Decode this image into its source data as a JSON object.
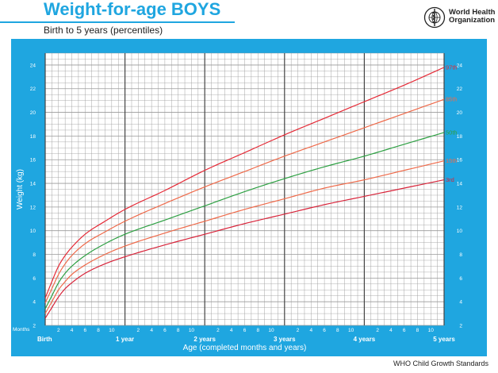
{
  "header": {
    "title": "Weight-for-age BOYS",
    "subtitle": "Birth to 5 years (percentiles)"
  },
  "logo": {
    "name": "World Health Organization",
    "line1": "World Health",
    "line2": "Organization",
    "icon": "who-emblem-icon"
  },
  "footer": {
    "source": "WHO Child Growth Standards"
  },
  "colors": {
    "panel": "#1fa6e0",
    "plot_bg": "#ffffff",
    "grid": "#9a9a9a",
    "year_line": "#444444",
    "p97": "#e52a36",
    "p85": "#ef6a4a",
    "p50": "#2ea043",
    "p15": "#ef6a4a",
    "p3": "#d8243a"
  },
  "chart_data": {
    "type": "line",
    "xlabel": "Age (completed months and years)",
    "ylabel": "Weight (kg)",
    "x_unit_label": "Months",
    "xlim": [
      0,
      60
    ],
    "ylim": [
      2,
      25
    ],
    "grid": true,
    "x_major_ticks": [
      {
        "month": 0,
        "label": "Birth"
      },
      {
        "month": 12,
        "label": "1 year"
      },
      {
        "month": 24,
        "label": "2 years"
      },
      {
        "month": 36,
        "label": "3 years"
      },
      {
        "month": 48,
        "label": "4 years"
      },
      {
        "month": 60,
        "label": "5 years"
      }
    ],
    "x_minor_ticks": [
      {
        "month": 2,
        "label": "2"
      },
      {
        "month": 4,
        "label": "4"
      },
      {
        "month": 6,
        "label": "6"
      },
      {
        "month": 8,
        "label": "8"
      },
      {
        "month": 10,
        "label": "10"
      },
      {
        "month": 14,
        "label": "2"
      },
      {
        "month": 16,
        "label": "4"
      },
      {
        "month": 18,
        "label": "6"
      },
      {
        "month": 20,
        "label": "8"
      },
      {
        "month": 22,
        "label": "10"
      },
      {
        "month": 26,
        "label": "2"
      },
      {
        "month": 28,
        "label": "4"
      },
      {
        "month": 30,
        "label": "6"
      },
      {
        "month": 32,
        "label": "8"
      },
      {
        "month": 34,
        "label": "10"
      },
      {
        "month": 38,
        "label": "2"
      },
      {
        "month": 40,
        "label": "4"
      },
      {
        "month": 42,
        "label": "6"
      },
      {
        "month": 44,
        "label": "8"
      },
      {
        "month": 46,
        "label": "10"
      },
      {
        "month": 50,
        "label": "2"
      },
      {
        "month": 52,
        "label": "4"
      },
      {
        "month": 54,
        "label": "6"
      },
      {
        "month": 56,
        "label": "8"
      },
      {
        "month": 58,
        "label": "10"
      }
    ],
    "y_ticks": [
      2,
      4,
      6,
      8,
      10,
      12,
      14,
      16,
      18,
      20,
      22,
      24
    ],
    "x": [
      0,
      1,
      2,
      3,
      4,
      6,
      9,
      12,
      18,
      24,
      30,
      36,
      42,
      48,
      54,
      60
    ],
    "series": [
      {
        "name": "97th",
        "color": "#e52a36",
        "values": [
          4.3,
          5.7,
          7.0,
          7.9,
          8.6,
          9.7,
          10.8,
          11.8,
          13.4,
          15.1,
          16.6,
          18.1,
          19.5,
          20.9,
          22.3,
          23.8
        ]
      },
      {
        "name": "85th",
        "color": "#ef6a4a",
        "values": [
          3.9,
          5.1,
          6.3,
          7.2,
          7.9,
          8.9,
          9.9,
          10.8,
          12.3,
          13.7,
          15.0,
          16.3,
          17.5,
          18.7,
          19.9,
          21.1
        ]
      },
      {
        "name": "50th",
        "color": "#2ea043",
        "values": [
          3.4,
          4.5,
          5.6,
          6.4,
          7.0,
          7.9,
          8.9,
          9.7,
          10.9,
          12.1,
          13.3,
          14.4,
          15.4,
          16.3,
          17.3,
          18.3
        ]
      },
      {
        "name": "15th",
        "color": "#ef6a4a",
        "values": [
          3.0,
          4.0,
          5.0,
          5.7,
          6.3,
          7.1,
          8.0,
          8.7,
          9.8,
          10.8,
          11.8,
          12.7,
          13.6,
          14.3,
          15.1,
          15.9
        ]
      },
      {
        "name": "3rd",
        "color": "#d8243a",
        "values": [
          2.6,
          3.5,
          4.4,
          5.1,
          5.6,
          6.4,
          7.2,
          7.8,
          8.8,
          9.7,
          10.6,
          11.4,
          12.2,
          12.9,
          13.6,
          14.3
        ]
      }
    ]
  }
}
